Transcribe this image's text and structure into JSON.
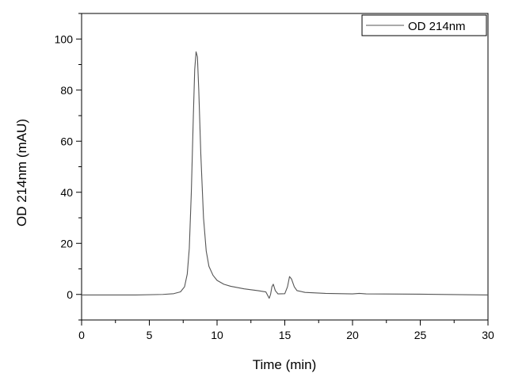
{
  "chart_data": {
    "type": "line",
    "xlabel": "Time (min)",
    "ylabel": "OD 214nm (mAU)",
    "xlim": [
      0,
      30
    ],
    "ylim": [
      -10,
      110
    ],
    "x_ticks": [
      "0",
      "5",
      "10",
      "15",
      "20",
      "25",
      "30"
    ],
    "y_ticks": [
      "0",
      "20",
      "40",
      "60",
      "80",
      "100"
    ],
    "grid": false,
    "legend_position": "top-right",
    "series": [
      {
        "name": "OD 214nm",
        "color": "#555555",
        "points": [
          [
            0,
            -0.2
          ],
          [
            2,
            -0.2
          ],
          [
            4,
            -0.2
          ],
          [
            6,
            0
          ],
          [
            6.8,
            0.3
          ],
          [
            7.3,
            1
          ],
          [
            7.6,
            3
          ],
          [
            7.8,
            8
          ],
          [
            7.95,
            18
          ],
          [
            8.1,
            40
          ],
          [
            8.25,
            70
          ],
          [
            8.35,
            88
          ],
          [
            8.45,
            95
          ],
          [
            8.55,
            93
          ],
          [
            8.65,
            80
          ],
          [
            8.8,
            55
          ],
          [
            9.0,
            30
          ],
          [
            9.2,
            17
          ],
          [
            9.4,
            11
          ],
          [
            9.7,
            7.5
          ],
          [
            10.0,
            5.5
          ],
          [
            10.5,
            4
          ],
          [
            11.0,
            3.2
          ],
          [
            12.0,
            2.2
          ],
          [
            13.0,
            1.5
          ],
          [
            13.6,
            1
          ],
          [
            13.85,
            -1.5
          ],
          [
            13.95,
            0
          ],
          [
            14.05,
            3
          ],
          [
            14.15,
            4
          ],
          [
            14.3,
            1.5
          ],
          [
            14.5,
            0.2
          ],
          [
            15.0,
            0.3
          ],
          [
            15.2,
            3
          ],
          [
            15.35,
            7
          ],
          [
            15.5,
            6
          ],
          [
            15.7,
            3
          ],
          [
            15.9,
            1.5
          ],
          [
            16.5,
            0.8
          ],
          [
            18,
            0.4
          ],
          [
            20,
            0.2
          ],
          [
            20.5,
            0.4
          ],
          [
            21,
            0.2
          ],
          [
            25,
            0.1
          ],
          [
            30,
            -0.2
          ]
        ]
      }
    ]
  }
}
